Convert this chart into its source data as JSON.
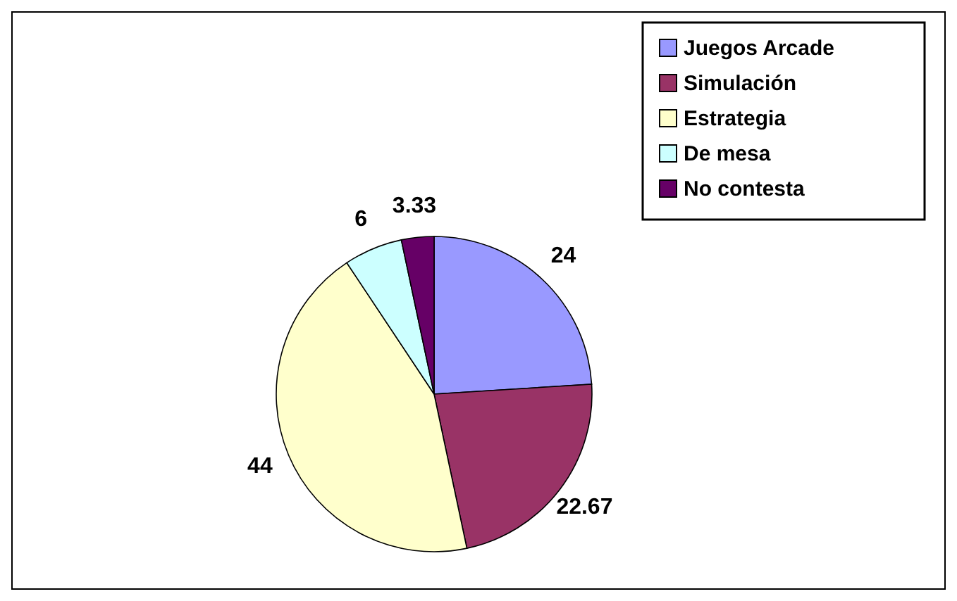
{
  "chart_data": {
    "type": "pie",
    "categories": [
      "Juegos Arcade",
      "Simulación",
      "Estrategia",
      "De mesa",
      "No contesta"
    ],
    "values": [
      24,
      22.67,
      44,
      6,
      3.33
    ],
    "colors": [
      "#9999ff",
      "#993366",
      "#ffffcc",
      "#ccffff",
      "#660066"
    ],
    "data_labels": true,
    "legend": "top right"
  }
}
